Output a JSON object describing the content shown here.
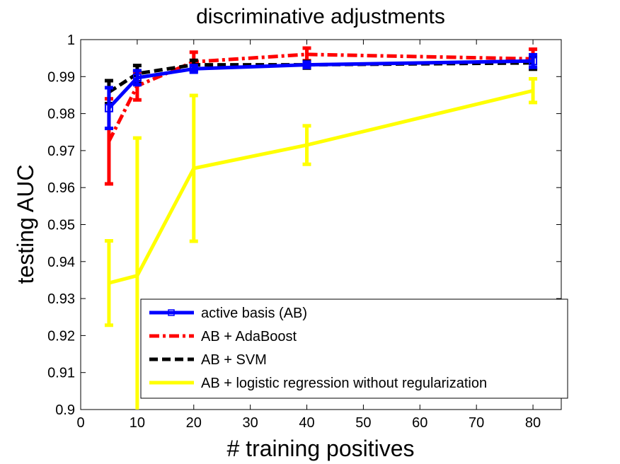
{
  "chart_data": {
    "type": "line",
    "title": "discriminative adjustments",
    "xlabel": "# training positives",
    "ylabel": "testing AUC",
    "xlim": [
      0,
      85
    ],
    "ylim": [
      0.9,
      1.0
    ],
    "xticks": [
      0,
      10,
      20,
      30,
      40,
      50,
      60,
      70,
      80
    ],
    "yticks": [
      0.9,
      0.91,
      0.92,
      0.93,
      0.94,
      0.95,
      0.96,
      0.97,
      0.98,
      0.99,
      1.0
    ],
    "xtick_labels": [
      "0",
      "10",
      "20",
      "30",
      "40",
      "50",
      "60",
      "70",
      "80"
    ],
    "ytick_labels": [
      "0.9",
      "0.91",
      "0.92",
      "0.93",
      "0.94",
      "0.95",
      "0.96",
      "0.97",
      "0.98",
      "0.99",
      "1"
    ],
    "grid": false,
    "legend_position": "bottom-right",
    "x": [
      5,
      10,
      20,
      40,
      80
    ],
    "series": [
      {
        "name": "active basis (AB)",
        "color": "#0000ff",
        "style": "solid",
        "marker": "square",
        "values": [
          0.9815,
          0.9897,
          0.9921,
          0.9932,
          0.9942
        ],
        "err_low": [
          0.976,
          0.9878,
          0.9912,
          0.9925,
          0.9925
        ],
        "err_high": [
          0.987,
          0.9916,
          0.993,
          0.9939,
          0.9959
        ]
      },
      {
        "name": "AB + AdaBoost",
        "color": "#ff0000",
        "style": "dashdot",
        "values": [
          0.9725,
          0.9875,
          0.994,
          0.996,
          0.9948
        ],
        "err_low": [
          0.961,
          0.9837,
          0.9918,
          0.9943,
          0.9922
        ],
        "err_high": [
          0.984,
          0.9913,
          0.9966,
          0.9977,
          0.9974
        ]
      },
      {
        "name": "AB + SVM",
        "color": "#000000",
        "style": "dashed",
        "values": [
          0.9858,
          0.9908,
          0.9932,
          0.9932,
          0.9937
        ],
        "err_low": [
          0.9827,
          0.9886,
          0.992,
          0.9923,
          0.992
        ],
        "err_high": [
          0.9889,
          0.993,
          0.9944,
          0.9941,
          0.9954
        ]
      },
      {
        "name": "AB + logistic regression without regularization",
        "color": "#ffff00",
        "style": "solid",
        "values": [
          0.9342,
          0.9362,
          0.9652,
          0.9715,
          0.9862
        ],
        "err_low": [
          0.9228,
          0.899,
          0.9455,
          0.9663,
          0.983
        ],
        "err_high": [
          0.9456,
          0.9734,
          0.9849,
          0.9767,
          0.9894
        ]
      }
    ]
  }
}
